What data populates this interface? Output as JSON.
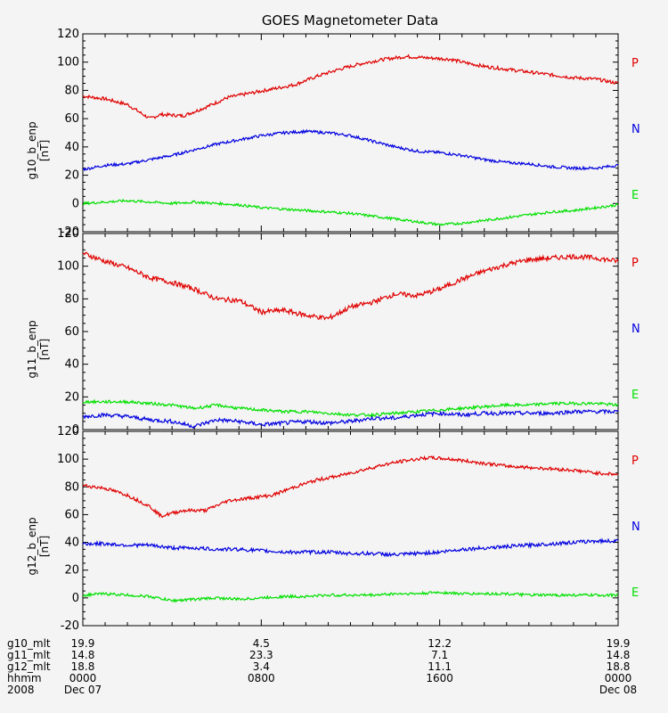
{
  "chart_data": {
    "type": "line",
    "title": "GOES Magnetometer Data",
    "x_hours": [
      0,
      24
    ],
    "panels": [
      {
        "ylabel": "g10_b_enp",
        "unit": "[nT]",
        "ylim": [
          -20,
          120
        ],
        "yticks": [
          -20,
          0,
          20,
          40,
          60,
          80,
          100,
          120
        ],
        "series": [
          {
            "name": "P",
            "color": "#e00000",
            "noise": 1.2,
            "points": [
              [
                0,
                76
              ],
              [
                1,
                74
              ],
              [
                2,
                70
              ],
              [
                2.5,
                65
              ],
              [
                3,
                60
              ],
              [
                3.5,
                63
              ],
              [
                4.5,
                62
              ],
              [
                5.5,
                68
              ],
              [
                6.5,
                75
              ],
              [
                7.5,
                78
              ],
              [
                8.5,
                81
              ],
              [
                9.5,
                84
              ],
              [
                10.5,
                90
              ],
              [
                11.5,
                95
              ],
              [
                12.5,
                99
              ],
              [
                13.5,
                102
              ],
              [
                14.5,
                104
              ],
              [
                15.5,
                103
              ],
              [
                16.5,
                102
              ],
              [
                17,
                100
              ],
              [
                18,
                97
              ],
              [
                19,
                95
              ],
              [
                20,
                93
              ],
              [
                21,
                91
              ],
              [
                22,
                89
              ],
              [
                23,
                88
              ],
              [
                24,
                85
              ]
            ]
          },
          {
            "name": "N",
            "color": "#0000e0",
            "noise": 1.0,
            "points": [
              [
                0,
                24
              ],
              [
                1,
                27
              ],
              [
                2,
                28
              ],
              [
                3,
                31
              ],
              [
                4,
                34
              ],
              [
                5,
                38
              ],
              [
                6,
                42
              ],
              [
                7,
                45
              ],
              [
                8,
                48
              ],
              [
                9,
                50
              ],
              [
                10,
                51
              ],
              [
                11,
                50
              ],
              [
                12,
                48
              ],
              [
                13,
                44
              ],
              [
                14,
                40
              ],
              [
                15,
                37
              ],
              [
                16,
                36
              ],
              [
                17,
                34
              ],
              [
                18,
                31
              ],
              [
                19,
                29
              ],
              [
                20,
                28
              ],
              [
                21,
                26
              ],
              [
                22,
                25
              ],
              [
                23,
                25
              ],
              [
                24,
                27
              ]
            ]
          },
          {
            "name": "E",
            "color": "#00e000",
            "noise": 0.9,
            "points": [
              [
                0,
                0
              ],
              [
                1,
                1
              ],
              [
                2,
                2
              ],
              [
                3,
                1
              ],
              [
                4,
                0
              ],
              [
                5,
                1
              ],
              [
                6,
                0
              ],
              [
                7,
                -1
              ],
              [
                8,
                -3
              ],
              [
                9,
                -4
              ],
              [
                10,
                -5
              ],
              [
                11,
                -6
              ],
              [
                12,
                -7
              ],
              [
                13,
                -9
              ],
              [
                14,
                -11
              ],
              [
                15,
                -13
              ],
              [
                16,
                -15
              ],
              [
                17,
                -14
              ],
              [
                18,
                -12
              ],
              [
                19,
                -10
              ],
              [
                20,
                -8
              ],
              [
                21,
                -6
              ],
              [
                22,
                -5
              ],
              [
                23,
                -3
              ],
              [
                24,
                -1
              ]
            ]
          }
        ]
      },
      {
        "ylabel": "g11_b_enp",
        "unit": "[nT]",
        "ylim": [
          0,
          120
        ],
        "yticks": [
          0,
          20,
          40,
          60,
          80,
          100,
          120
        ],
        "series": [
          {
            "name": "P",
            "color": "#e00000",
            "noise": 1.5,
            "points": [
              [
                0,
                108
              ],
              [
                1,
                103
              ],
              [
                2,
                99
              ],
              [
                3,
                93
              ],
              [
                4,
                90
              ],
              [
                5,
                86
              ],
              [
                6,
                80
              ],
              [
                7,
                79
              ],
              [
                8,
                72
              ],
              [
                9,
                73
              ],
              [
                10,
                70
              ],
              [
                11,
                68
              ],
              [
                12,
                75
              ],
              [
                13,
                78
              ],
              [
                14,
                83
              ],
              [
                15,
                82
              ],
              [
                16,
                86
              ],
              [
                17,
                92
              ],
              [
                18,
                97
              ],
              [
                19,
                101
              ],
              [
                20,
                104
              ],
              [
                21,
                105
              ],
              [
                22,
                106
              ],
              [
                23,
                105
              ],
              [
                24,
                103
              ]
            ]
          },
          {
            "name": "N",
            "color": "#0000e0",
            "noise": 1.2,
            "points": [
              [
                0,
                8
              ],
              [
                1,
                9
              ],
              [
                2,
                8
              ],
              [
                3,
                6
              ],
              [
                4,
                5
              ],
              [
                5,
                2
              ],
              [
                6,
                6
              ],
              [
                7,
                5
              ],
              [
                8,
                3
              ],
              [
                9,
                4
              ],
              [
                10,
                5
              ],
              [
                11,
                4
              ],
              [
                12,
                5
              ],
              [
                13,
                7
              ],
              [
                14,
                7
              ],
              [
                15,
                9
              ],
              [
                16,
                10
              ],
              [
                17,
                9
              ],
              [
                18,
                10
              ],
              [
                19,
                10
              ],
              [
                20,
                10
              ],
              [
                21,
                10
              ],
              [
                22,
                11
              ],
              [
                23,
                11
              ],
              [
                24,
                11
              ]
            ]
          },
          {
            "name": "E",
            "color": "#00e000",
            "noise": 0.9,
            "points": [
              [
                0,
                17
              ],
              [
                1,
                17
              ],
              [
                2,
                17
              ],
              [
                3,
                16
              ],
              [
                4,
                15
              ],
              [
                5,
                13
              ],
              [
                6,
                15
              ],
              [
                7,
                13
              ],
              [
                8,
                12
              ],
              [
                9,
                11
              ],
              [
                10,
                11
              ],
              [
                11,
                10
              ],
              [
                12,
                9
              ],
              [
                13,
                9
              ],
              [
                14,
                10
              ],
              [
                15,
                11
              ],
              [
                16,
                12
              ],
              [
                17,
                13
              ],
              [
                18,
                14
              ],
              [
                19,
                15
              ],
              [
                20,
                15
              ],
              [
                21,
                16
              ],
              [
                22,
                16
              ],
              [
                23,
                16
              ],
              [
                24,
                15
              ]
            ]
          }
        ]
      },
      {
        "ylabel": "g12_b_enp",
        "unit": "[nT]",
        "ylim": [
          -20,
          120
        ],
        "yticks": [
          -20,
          0,
          20,
          40,
          60,
          80,
          100,
          120
        ],
        "series": [
          {
            "name": "P",
            "color": "#e00000",
            "noise": 1.2,
            "points": [
              [
                0,
                81
              ],
              [
                1,
                79
              ],
              [
                2,
                74
              ],
              [
                3,
                66
              ],
              [
                3.5,
                59
              ],
              [
                4.5,
                63
              ],
              [
                5.5,
                63
              ],
              [
                6.5,
                70
              ],
              [
                7.5,
                72
              ],
              [
                8.5,
                74
              ],
              [
                9.5,
                80
              ],
              [
                10.5,
                85
              ],
              [
                11.5,
                88
              ],
              [
                12.5,
                92
              ],
              [
                13.5,
                96
              ],
              [
                14.5,
                99
              ],
              [
                15.5,
                101
              ],
              [
                16.5,
                100
              ],
              [
                17,
                99
              ],
              [
                18,
                97
              ],
              [
                19,
                95
              ],
              [
                20,
                94
              ],
              [
                21,
                93
              ],
              [
                22,
                92
              ],
              [
                23,
                90
              ],
              [
                24,
                89
              ]
            ]
          },
          {
            "name": "N",
            "color": "#0000e0",
            "noise": 1.3,
            "points": [
              [
                0,
                39
              ],
              [
                1,
                39
              ],
              [
                2,
                38
              ],
              [
                3,
                38
              ],
              [
                4,
                36
              ],
              [
                5,
                36
              ],
              [
                6,
                35
              ],
              [
                7,
                35
              ],
              [
                8,
                34
              ],
              [
                9,
                33
              ],
              [
                10,
                33
              ],
              [
                11,
                33
              ],
              [
                12,
                32
              ],
              [
                13,
                32
              ],
              [
                14,
                31
              ],
              [
                15,
                32
              ],
              [
                16,
                33
              ],
              [
                17,
                35
              ],
              [
                18,
                36
              ],
              [
                19,
                37
              ],
              [
                20,
                38
              ],
              [
                21,
                39
              ],
              [
                22,
                40
              ],
              [
                23,
                41
              ],
              [
                24,
                41
              ]
            ]
          },
          {
            "name": "E",
            "color": "#00e000",
            "noise": 1.0,
            "points": [
              [
                0,
                2
              ],
              [
                1,
                3
              ],
              [
                2,
                2
              ],
              [
                3,
                1
              ],
              [
                4,
                -2
              ],
              [
                5,
                -1
              ],
              [
                6,
                0
              ],
              [
                7,
                -1
              ],
              [
                8,
                0
              ],
              [
                9,
                1
              ],
              [
                10,
                1
              ],
              [
                11,
                2
              ],
              [
                12,
                2
              ],
              [
                13,
                2
              ],
              [
                14,
                3
              ],
              [
                15,
                3
              ],
              [
                16,
                4
              ],
              [
                17,
                3
              ],
              [
                18,
                3
              ],
              [
                19,
                3
              ],
              [
                20,
                2
              ],
              [
                21,
                2
              ],
              [
                22,
                2
              ],
              [
                23,
                2
              ],
              [
                24,
                2
              ]
            ]
          }
        ]
      }
    ],
    "bottom_axis": {
      "row_labels": [
        "g10_mlt",
        "g11_mlt",
        "g12_mlt",
        "hhmm",
        "2008"
      ],
      "ticks": [
        {
          "hour": 0,
          "values": [
            "19.9",
            "14.8",
            "18.8",
            "0000",
            "Dec 07"
          ]
        },
        {
          "hour": 8,
          "values": [
            "4.5",
            "23.3",
            "3.4",
            "0800",
            ""
          ]
        },
        {
          "hour": 16,
          "values": [
            "12.2",
            "7.1",
            "11.1",
            "1600",
            ""
          ]
        },
        {
          "hour": 24,
          "values": [
            "19.9",
            "14.8",
            "18.8",
            "0000",
            "Dec 08"
          ]
        }
      ]
    }
  }
}
